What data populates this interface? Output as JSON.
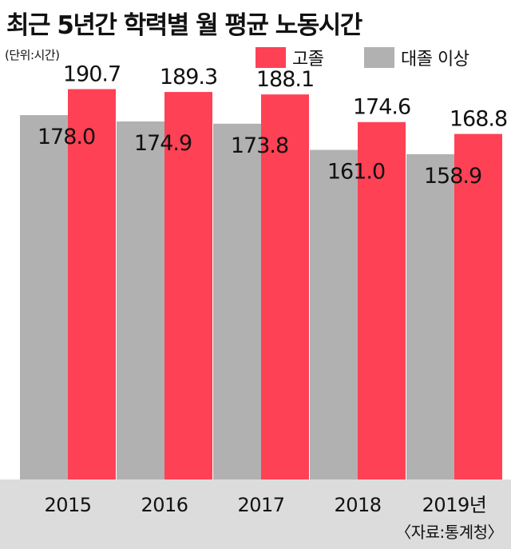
{
  "title": "최근 5년간 학력별 월 평균 노동시간",
  "unit": "(단위:시간)",
  "source": "〈자료:통계청〉",
  "legend": [
    {
      "label": "고졸",
      "color": "#ff4155"
    },
    {
      "label": "대졸 이상",
      "color": "#b1b1b1"
    }
  ],
  "chart_data": {
    "type": "bar",
    "title": "최근 5년간 학력별 월 평균 노동시간",
    "ylabel": "",
    "categories": [
      "2015",
      "2016",
      "2017",
      "2018",
      "2019년"
    ],
    "series": [
      {
        "name": "대졸 이상",
        "color": "#b1b1b1",
        "values": [
          178.0,
          174.9,
          173.8,
          161.0,
          158.9
        ]
      },
      {
        "name": "고졸",
        "color": "#ff4155",
        "values": [
          190.7,
          189.3,
          188.1,
          174.6,
          168.8
        ]
      }
    ],
    "ylim": [
      0,
      203
    ],
    "grid": false,
    "legend_position": "top-right",
    "axis_band_color": "#dcdcdc"
  }
}
